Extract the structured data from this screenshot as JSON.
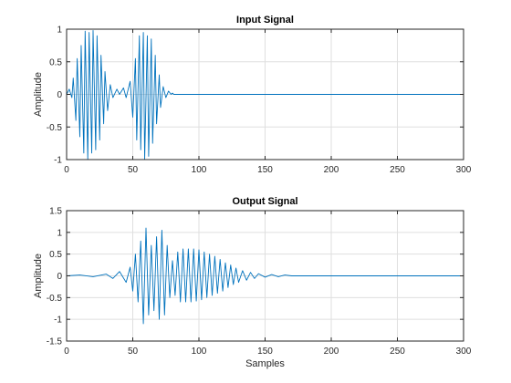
{
  "chart_data": [
    {
      "type": "line",
      "title": "Input Signal",
      "xlabel": "",
      "ylabel": "Amplitude",
      "xlim": [
        0,
        300
      ],
      "ylim": [
        -1,
        1
      ],
      "xticks": [
        0,
        50,
        100,
        150,
        200,
        250,
        300
      ],
      "yticks": [
        -1,
        -0.5,
        0,
        0.5,
        1
      ],
      "grid": true,
      "color": "#0072BD",
      "series": [
        {
          "x": [
            0,
            2,
            4,
            5,
            7,
            8,
            10,
            11,
            13,
            14,
            16,
            17,
            19,
            20,
            22,
            23,
            25,
            26,
            28,
            29,
            31,
            33,
            35,
            38,
            40,
            43,
            45,
            48,
            50,
            52,
            53,
            55,
            56,
            58,
            59,
            61,
            62,
            64,
            65,
            67,
            68,
            70,
            71,
            73,
            75,
            77,
            79,
            80,
            81,
            300
          ],
          "values": [
            0,
            0.08,
            -0.05,
            0.25,
            -0.4,
            0.55,
            -0.65,
            0.75,
            -0.9,
            0.97,
            -1,
            0.95,
            -0.9,
            0.98,
            -0.85,
            0.9,
            -0.7,
            0.6,
            -0.45,
            0.35,
            -0.25,
            0.15,
            -0.05,
            0.08,
            0,
            0.1,
            -0.05,
            0.2,
            -0.35,
            0.55,
            -0.7,
            0.9,
            -0.85,
            0.95,
            -1,
            0.9,
            -0.95,
            0.85,
            -0.75,
            0.6,
            -0.45,
            0.3,
            -0.2,
            0.12,
            -0.05,
            0.05,
            0,
            0.02,
            0,
            0
          ]
        }
      ]
    },
    {
      "type": "line",
      "title": "Output Signal",
      "xlabel": "Samples",
      "ylabel": "Amplitude",
      "xlim": [
        0,
        300
      ],
      "ylim": [
        -1.5,
        1.5
      ],
      "xticks": [
        0,
        50,
        100,
        150,
        200,
        250,
        300
      ],
      "yticks": [
        -1.5,
        -1,
        -0.5,
        0,
        0.5,
        1,
        1.5
      ],
      "grid": true,
      "color": "#0072BD",
      "series": [
        {
          "x": [
            0,
            10,
            20,
            30,
            35,
            40,
            45,
            48,
            50,
            52,
            54,
            56,
            58,
            60,
            62,
            64,
            66,
            68,
            70,
            72,
            74,
            76,
            78,
            80,
            82,
            84,
            86,
            88,
            90,
            92,
            94,
            96,
            98,
            100,
            102,
            104,
            106,
            108,
            110,
            112,
            114,
            116,
            118,
            120,
            122,
            124,
            126,
            128,
            130,
            133,
            136,
            139,
            142,
            145,
            150,
            155,
            160,
            165,
            170,
            300
          ],
          "values": [
            0,
            0.02,
            -0.02,
            0.04,
            -0.06,
            0.1,
            -0.15,
            0.2,
            -0.35,
            0.5,
            -0.6,
            0.8,
            -1.1,
            1.1,
            -0.9,
            0.7,
            -0.8,
            0.9,
            -1.0,
            1.05,
            -0.9,
            0.7,
            -0.5,
            0.35,
            -0.45,
            0.55,
            -0.6,
            0.62,
            -0.6,
            0.62,
            -0.6,
            0.62,
            -0.58,
            0.6,
            -0.55,
            0.55,
            -0.5,
            0.5,
            -0.45,
            0.45,
            -0.4,
            0.38,
            -0.35,
            0.3,
            -0.27,
            0.25,
            -0.2,
            0.18,
            -0.15,
            0.12,
            -0.1,
            0.08,
            -0.06,
            0.05,
            -0.03,
            0.03,
            -0.02,
            0.02,
            0,
            0
          ]
        }
      ]
    }
  ]
}
